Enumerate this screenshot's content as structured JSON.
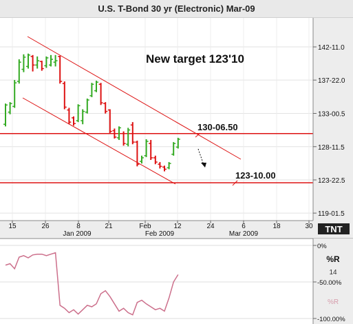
{
  "title": "U.S. T-Bond 30 yr (Electronic) Mar-09",
  "price_axis": {
    "tick_labels": [
      "142-11.0",
      "137-22.0",
      "133-00.5",
      "128-11.5",
      "123-22.5",
      "119-01.5"
    ]
  },
  "date_axis": {
    "day_labels": [
      "15",
      "26",
      "8",
      "21",
      "Feb",
      "12",
      "24",
      "6",
      "18",
      "30"
    ],
    "month_labels": [
      "Jan 2009",
      "Feb 2009",
      "Mar 2009"
    ]
  },
  "logo": "TNT",
  "annotations": {
    "target_text": "New target 123'10",
    "level_1_label": "130-06.50",
    "level_2_label": "123-10.00"
  },
  "indicator": {
    "name": "%R",
    "period": "14",
    "tick_labels": [
      "-100.00%",
      "-50.00%",
      "0%"
    ],
    "watermark": "%R"
  },
  "colors": {
    "up_bar": "#33aa22",
    "down_bar": "#dd1111",
    "level_line": "#dd1111",
    "channel_line": "#dd1111",
    "indicator_line": "#cc6f8b"
  },
  "chart_data": {
    "type": "ohlc",
    "title": "U.S. T-Bond 30 yr (Electronic) Mar-09",
    "x_unit": "trading day index (Dec 2008 – Feb 2009)",
    "y_unit": "price (points)",
    "ylim": [
      118.0,
      146.4
    ],
    "horizontal_levels": [
      130.2,
      123.3
    ],
    "bars": [
      {
        "o": 131.5,
        "h": 134.4,
        "l": 131.2,
        "c": 134.2,
        "up": true
      },
      {
        "o": 133.2,
        "h": 134.6,
        "l": 132.9,
        "c": 134.4,
        "up": true
      },
      {
        "o": 134.0,
        "h": 137.7,
        "l": 133.8,
        "c": 137.3,
        "up": true
      },
      {
        "o": 137.5,
        "h": 140.6,
        "l": 137.2,
        "c": 140.2,
        "up": true
      },
      {
        "o": 139.2,
        "h": 141.3,
        "l": 138.8,
        "c": 140.9,
        "up": true
      },
      {
        "o": 139.6,
        "h": 141.4,
        "l": 139.3,
        "c": 141.2,
        "up": true
      },
      {
        "o": 141.0,
        "h": 141.2,
        "l": 138.9,
        "c": 139.8,
        "up": false
      },
      {
        "o": 139.8,
        "h": 141.0,
        "l": 139.3,
        "c": 140.4,
        "up": true
      },
      {
        "o": 140.3,
        "h": 140.4,
        "l": 139.0,
        "c": 139.3,
        "up": false
      },
      {
        "o": 139.7,
        "h": 141.0,
        "l": 139.4,
        "c": 140.8,
        "up": true
      },
      {
        "o": 139.8,
        "h": 141.2,
        "l": 139.6,
        "c": 140.6,
        "up": true
      },
      {
        "o": 140.2,
        "h": 141.2,
        "l": 139.6,
        "c": 140.4,
        "up": true
      },
      {
        "o": 141.0,
        "h": 141.1,
        "l": 137.2,
        "c": 137.5,
        "up": false
      },
      {
        "o": 137.2,
        "h": 137.5,
        "l": 133.6,
        "c": 133.9,
        "up": false
      },
      {
        "o": 133.5,
        "h": 133.8,
        "l": 131.5,
        "c": 131.8,
        "up": false
      },
      {
        "o": 132.4,
        "h": 132.6,
        "l": 131.3,
        "c": 131.6,
        "up": false
      },
      {
        "o": 132.0,
        "h": 134.3,
        "l": 131.8,
        "c": 134.1,
        "up": true
      },
      {
        "o": 132.0,
        "h": 133.6,
        "l": 131.5,
        "c": 133.3,
        "up": true
      },
      {
        "o": 133.2,
        "h": 135.1,
        "l": 133.0,
        "c": 134.9,
        "up": true
      },
      {
        "o": 135.5,
        "h": 137.3,
        "l": 135.3,
        "c": 137.1,
        "up": true
      },
      {
        "o": 136.2,
        "h": 137.6,
        "l": 136.0,
        "c": 137.4,
        "up": true
      },
      {
        "o": 137.1,
        "h": 137.3,
        "l": 134.2,
        "c": 134.5,
        "up": false
      },
      {
        "o": 134.4,
        "h": 134.6,
        "l": 133.0,
        "c": 133.3,
        "up": false
      },
      {
        "o": 133.5,
        "h": 133.6,
        "l": 130.2,
        "c": 130.5,
        "up": false
      },
      {
        "o": 130.6,
        "h": 130.9,
        "l": 129.5,
        "c": 129.7,
        "up": false
      },
      {
        "o": 129.6,
        "h": 131.2,
        "l": 129.3,
        "c": 131.0,
        "up": true
      },
      {
        "o": 130.2,
        "h": 130.5,
        "l": 128.5,
        "c": 128.8,
        "up": false
      },
      {
        "o": 128.7,
        "h": 131.0,
        "l": 128.4,
        "c": 130.7,
        "up": true
      },
      {
        "o": 131.4,
        "h": 131.8,
        "l": 128.7,
        "c": 129.0,
        "up": false
      },
      {
        "o": 129.0,
        "h": 129.2,
        "l": 125.6,
        "c": 125.9,
        "up": false
      },
      {
        "o": 126.3,
        "h": 127.1,
        "l": 126.0,
        "c": 126.8,
        "up": true
      },
      {
        "o": 127.1,
        "h": 129.4,
        "l": 126.9,
        "c": 129.1,
        "up": true
      },
      {
        "o": 128.8,
        "h": 129.3,
        "l": 126.5,
        "c": 126.8,
        "up": false
      },
      {
        "o": 126.8,
        "h": 127.1,
        "l": 125.9,
        "c": 126.2,
        "up": false
      },
      {
        "o": 125.9,
        "h": 126.2,
        "l": 125.3,
        "c": 125.6,
        "up": false
      },
      {
        "o": 125.5,
        "h": 125.7,
        "l": 124.9,
        "c": 125.2,
        "up": false
      },
      {
        "o": 125.4,
        "h": 126.2,
        "l": 125.2,
        "c": 126.0,
        "up": true
      },
      {
        "o": 127.3,
        "h": 129.0,
        "l": 127.1,
        "c": 128.8,
        "up": true
      },
      {
        "o": 128.3,
        "h": 129.6,
        "l": 128.1,
        "c": 129.4,
        "up": true
      }
    ],
    "indicator_series": {
      "name": "%R",
      "values": [
        -27,
        -25,
        -32,
        -16,
        -14,
        -17,
        -13,
        -12,
        -12,
        -14,
        -12,
        -10,
        -82,
        -86,
        -92,
        -88,
        -94,
        -88,
        -82,
        -84,
        -80,
        -66,
        -62,
        -70,
        -80,
        -90,
        -86,
        -92,
        -95,
        -78,
        -75,
        -80,
        -84,
        -88,
        -86,
        -90,
        -72,
        -50,
        -40
      ]
    },
    "indicator_ylim": [
      -100,
      0
    ]
  }
}
